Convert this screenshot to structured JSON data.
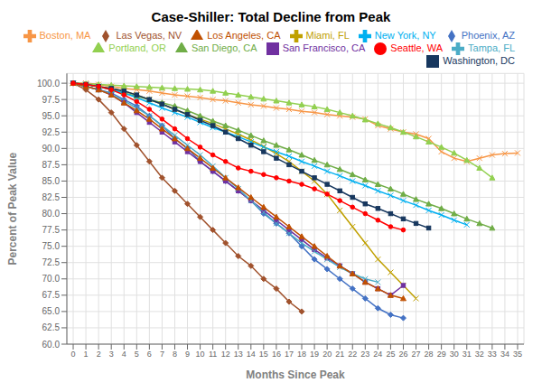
{
  "chart_data": {
    "type": "line",
    "title": "Case-Shiller: Total Decline from Peak",
    "x_label": "Months Since Peak",
    "y_label": "Percent of Peak Value",
    "x": [
      0,
      1,
      2,
      3,
      4,
      5,
      6,
      7,
      8,
      9,
      10,
      11,
      12,
      13,
      14,
      15,
      16,
      17,
      18,
      19,
      20,
      21,
      22,
      23,
      24,
      25,
      26,
      27,
      28,
      29,
      30,
      31,
      32,
      33,
      34,
      35
    ],
    "xlim": [
      -0.5,
      35.5
    ],
    "xticks": [
      0,
      1,
      2,
      3,
      4,
      5,
      6,
      7,
      8,
      9,
      10,
      11,
      12,
      13,
      14,
      15,
      16,
      17,
      18,
      19,
      20,
      21,
      22,
      23,
      24,
      25,
      26,
      27,
      28,
      29,
      30,
      31,
      32,
      33,
      34,
      35
    ],
    "ylim": [
      60.0,
      101.5
    ],
    "yticks": [
      {
        "value": 60,
        "label": "60.0"
      },
      62.5,
      {
        "value": 65,
        "label": "65.0"
      },
      67.5,
      {
        "value": 70,
        "label": "70.0"
      },
      72.5,
      {
        "value": 75,
        "label": "75.0"
      },
      77.5,
      {
        "value": 80,
        "label": "80.0"
      },
      82.5,
      {
        "value": 85,
        "label": "85.0"
      },
      87.5,
      {
        "value": 90,
        "label": "90.0"
      },
      92.5,
      {
        "value": 95,
        "label": "95.0"
      },
      97.5,
      {
        "value": 100,
        "label": "100.0"
      }
    ],
    "grid": true,
    "legend": "top",
    "series": [
      {
        "name": "Boston, MA",
        "color": "#F79646",
        "marker": "x",
        "values": [
          100,
          100,
          99.8,
          99.5,
          99.2,
          99.0,
          98.8,
          98.5,
          98.2,
          98.0,
          97.8,
          97.5,
          97.3,
          97.0,
          96.7,
          96.5,
          96.2,
          96.0,
          95.7,
          95.5,
          95.2,
          95.0,
          94.8,
          94.5,
          93.5,
          93.0,
          92.5,
          92.2,
          91.5,
          89.5,
          88.5,
          88.0,
          88.5,
          89.0,
          89.2,
          89.3
        ]
      },
      {
        "name": "Phoenix, AZ",
        "color": "#4472C4",
        "marker": "diamond",
        "values": [
          100,
          99.5,
          99,
          98.5,
          97.5,
          96.5,
          95,
          93.5,
          91.5,
          90,
          88,
          86.5,
          85,
          83.5,
          82,
          80,
          78.5,
          77,
          75,
          73,
          71.5,
          70,
          68.5,
          67,
          65.5,
          64.5,
          64,
          null,
          null,
          null,
          null,
          null,
          null,
          null,
          null,
          null
        ]
      },
      {
        "name": "Miami, FL",
        "color": "#C0A000",
        "marker": "x",
        "values": [
          100,
          99.8,
          99.5,
          99.2,
          98.8,
          98.2,
          97.5,
          96.8,
          96.0,
          95.2,
          94.5,
          93.8,
          93.0,
          92.2,
          91.3,
          90.3,
          89.2,
          88.0,
          86.5,
          85.0,
          83.0,
          80.5,
          78.0,
          75.5,
          73.0,
          71.0,
          69.0,
          67.0,
          null,
          null,
          null,
          null,
          null,
          null,
          null,
          null
        ]
      },
      {
        "name": "San Francisco, CA",
        "color": "#7030A0",
        "marker": "square",
        "values": [
          100,
          99.5,
          99,
          98.2,
          97,
          95.5,
          94,
          92.5,
          91,
          89.5,
          88,
          86.5,
          85,
          83.5,
          82,
          80.5,
          79,
          77.5,
          76,
          74.5,
          73.2,
          72,
          70.8,
          69.5,
          68.5,
          67.5,
          69,
          null,
          null,
          null,
          null,
          null,
          null,
          null,
          null,
          null
        ]
      },
      {
        "name": "San Diego, CA",
        "color": "#70AD47",
        "marker": "triangle",
        "values": [
          100,
          99.8,
          99.5,
          99,
          98.5,
          98,
          97.5,
          97,
          96.5,
          95.8,
          95,
          94.2,
          93.5,
          92.8,
          92,
          91.2,
          90.5,
          89.8,
          89.0,
          88.2,
          87.5,
          86.8,
          86,
          85.2,
          84.5,
          83.8,
          83,
          82.2,
          81.5,
          80.8,
          80,
          79.2,
          78.5,
          77.8,
          null,
          null
        ]
      },
      {
        "name": "Portland, OR",
        "color": "#92D050",
        "marker": "triangle",
        "values": [
          100,
          99.9,
          99.8,
          99.7,
          99.6,
          99.5,
          99.4,
          99.3,
          99.2,
          99.1,
          99.0,
          98.8,
          98.5,
          98.2,
          97.9,
          97.6,
          97.3,
          97.0,
          96.7,
          96.4,
          96.0,
          95.5,
          95.0,
          94.4,
          93.8,
          93.2,
          92.5,
          91.8,
          91.0,
          90.2,
          89.3,
          88.2,
          87.0,
          85.5,
          null,
          null
        ]
      },
      {
        "name": "New York, NY",
        "color": "#00B0F0",
        "marker": "x",
        "values": [
          100,
          99.8,
          99.5,
          99,
          98.5,
          97.8,
          97.0,
          96.2,
          95.5,
          94.8,
          94.0,
          93.2,
          92.5,
          91.8,
          91,
          90.2,
          89.5,
          88.8,
          88,
          87.3,
          86.5,
          85.8,
          85.0,
          84.3,
          83.5,
          82.8,
          82.0,
          81.3,
          80.5,
          79.8,
          79.0,
          78.3,
          null,
          null,
          null,
          null
        ]
      },
      {
        "name": "Las Vegas, NV",
        "color": "#A0522D",
        "marker": "diamond",
        "values": [
          100,
          99,
          97.5,
          95.5,
          93,
          90.5,
          88,
          85.5,
          83.5,
          81.5,
          79.5,
          77.5,
          75.5,
          73.5,
          72,
          70,
          68.5,
          66.5,
          65,
          null,
          null,
          null,
          null,
          null,
          null,
          null,
          null,
          null,
          null,
          null,
          null,
          null,
          null,
          null,
          null,
          null
        ]
      },
      {
        "name": "Tampa, FL",
        "color": "#4BACC6",
        "marker": "x",
        "values": [
          100,
          99.5,
          99,
          98.3,
          97.3,
          96.2,
          95,
          93.5,
          92,
          90.5,
          89,
          87.3,
          85.5,
          83.8,
          82,
          80.2,
          78.5,
          77,
          75.5,
          74.2,
          73,
          71.8,
          70.8,
          70.0,
          69.5,
          null,
          null,
          null,
          null,
          null,
          null,
          null,
          null,
          null,
          null,
          null
        ]
      },
      {
        "name": "Washington, DC",
        "color": "#17375E",
        "marker": "square",
        "values": [
          100,
          99.8,
          99.5,
          99.2,
          98.8,
          98.2,
          97.5,
          96.8,
          96.0,
          95.2,
          94.3,
          93.5,
          92.5,
          91.5,
          90.5,
          89.5,
          88.5,
          87.5,
          86.5,
          85.5,
          84.5,
          83.5,
          82.5,
          81.5,
          80.8,
          80.0,
          79.2,
          78.5,
          77.8,
          null,
          null,
          null,
          null,
          null,
          null,
          null
        ]
      },
      {
        "name": "Los Angeles, CA",
        "color": "#C05000",
        "marker": "triangle",
        "values": [
          100,
          99.5,
          99,
          98.2,
          97,
          95.8,
          94.5,
          93,
          91.5,
          90,
          88.5,
          87,
          85.5,
          84,
          82.5,
          81,
          79.5,
          78,
          76.5,
          75,
          73.5,
          72,
          70.8,
          69.5,
          68.5,
          67.5,
          67,
          null,
          null,
          null,
          null,
          null,
          null,
          null,
          null,
          null
        ]
      },
      {
        "name": "Seattle, WA",
        "color": "#FF0000",
        "marker": "circle",
        "values": [
          100,
          99.8,
          99.5,
          99,
          98.2,
          97.2,
          96.0,
          94.5,
          93.0,
          91.5,
          90.2,
          89.0,
          88.0,
          87.0,
          86.5,
          86.0,
          85.5,
          85.0,
          84.5,
          83.8,
          83.0,
          82.0,
          81.0,
          80.0,
          79.0,
          78.0,
          77.5,
          null,
          null,
          null,
          null,
          null,
          null,
          null,
          null,
          null
        ]
      }
    ]
  }
}
